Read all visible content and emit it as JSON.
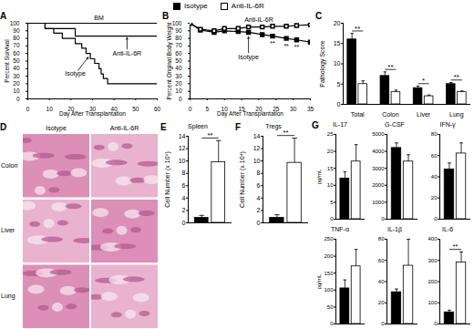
{
  "legend": {
    "series": [
      {
        "name": "Isotype",
        "color": "#000000"
      },
      {
        "name": "Anti-IL-6R",
        "color": "#ffffff"
      }
    ]
  },
  "chart_data": [
    {
      "panel": "A",
      "type": "line",
      "line_style": "step",
      "x_label": "Day After Transplantation",
      "y_label": "Percent Survival",
      "xlim": [
        0,
        60
      ],
      "xticks": [
        0,
        10,
        20,
        30,
        40,
        50,
        60
      ],
      "ylim": [
        0,
        100
      ],
      "yticks": [
        0,
        10,
        20,
        30,
        40,
        50,
        60,
        70,
        80,
        90,
        100
      ],
      "series": [
        {
          "name": "BM",
          "color": "#000000",
          "x": [
            0,
            60
          ],
          "values": [
            100,
            100
          ]
        },
        {
          "name": "Anti-IL-6R",
          "color": "#000000",
          "x": [
            0,
            8,
            22,
            60
          ],
          "values": [
            100,
            93,
            83,
            83
          ]
        },
        {
          "name": "Isotype",
          "color": "#000000",
          "x": [
            0,
            8,
            12,
            16,
            22,
            25,
            27,
            29,
            31,
            33,
            34,
            35,
            37,
            60
          ],
          "values": [
            100,
            93,
            87,
            80,
            73,
            67,
            60,
            53,
            47,
            40,
            33,
            27,
            20,
            20
          ]
        }
      ],
      "annotations": [
        {
          "text": "BM",
          "x": 33,
          "y": 107
        },
        {
          "text": "Anti-IL-6R",
          "x": 46,
          "y": 60,
          "arrow_to": [
            46,
            81
          ]
        },
        {
          "text": "Isotype",
          "x": 22,
          "y": 33,
          "arrow_to": [
            28,
            55
          ]
        }
      ]
    },
    {
      "panel": "B",
      "type": "line",
      "x_label": "Day After Transplantation",
      "y_label": "Percent Original Body Weight",
      "xlim": [
        0,
        35
      ],
      "xticks": [
        0,
        5,
        10,
        15,
        20,
        25,
        30,
        35
      ],
      "ylim": [
        0,
        100
      ],
      "yticks": [
        0,
        10,
        20,
        30,
        40,
        50,
        60,
        70,
        80,
        90,
        100
      ],
      "series": [
        {
          "name": "Isotype",
          "color": "#000000",
          "marker": "square",
          "x": [
            0,
            3,
            7,
            10,
            14,
            17,
            21,
            24,
            28,
            31,
            35
          ],
          "values": [
            100,
            91,
            88,
            90,
            89,
            88,
            85,
            83,
            80,
            78,
            75
          ]
        },
        {
          "name": "Anti-IL-6R",
          "color": "#ffffff",
          "marker": "square",
          "x": [
            0,
            3,
            7,
            10,
            14,
            17,
            21,
            24,
            28,
            31,
            35
          ],
          "values": [
            100,
            92,
            90,
            93,
            93,
            95,
            95,
            96,
            96,
            97,
            98
          ]
        }
      ],
      "annotations": [
        {
          "text": "**",
          "x": 24,
          "y": 73
        },
        {
          "text": "**",
          "x": 28,
          "y": 70
        },
        {
          "text": "**",
          "x": 31,
          "y": 68
        },
        {
          "text": "Anti-IL-6R",
          "x": 20,
          "y": 104
        },
        {
          "text": "Isotype",
          "x": 17,
          "y": 55,
          "arrow_to": [
            17,
            82
          ]
        }
      ]
    },
    {
      "panel": "C",
      "type": "bar",
      "y_label": "Pathology Score",
      "categories": [
        "Total",
        "Colon",
        "Liver",
        "Lung"
      ],
      "ylim": [
        0,
        20
      ],
      "yticks": [
        0,
        5,
        10,
        15,
        20
      ],
      "series": [
        {
          "name": "Isotype",
          "color": "#000000",
          "values": [
            16,
            7,
            4,
            5
          ],
          "errors": [
            1.5,
            1,
            0.5,
            0.4
          ]
        },
        {
          "name": "Anti-IL-6R",
          "color": "#ffffff",
          "values": [
            5,
            3,
            2,
            3
          ],
          "errors": [
            0.8,
            0.5,
            0.3,
            0.3
          ]
        }
      ],
      "significance": [
        "**",
        "**",
        "*",
        "**"
      ]
    },
    {
      "panel": "D",
      "type": "image_grid",
      "columns": [
        "Isotype",
        "Anti-IL-6R"
      ],
      "rows": [
        "Colon",
        "Liver",
        "Lung"
      ]
    },
    {
      "panel": "E",
      "type": "bar",
      "title": "Spleen",
      "y_label": "Cell Number (x 10⁶)",
      "categories": [
        null
      ],
      "tick_labels": "y",
      "ylim": [
        0,
        14
      ],
      "yticks": [
        0,
        2,
        4,
        6,
        8,
        10,
        12,
        14
      ],
      "series": [
        {
          "name": "Isotype",
          "color": "#000000",
          "values": [
            0.8
          ],
          "errors": [
            0.4
          ]
        },
        {
          "name": "Anti-IL-6R",
          "color": "#ffffff",
          "values": [
            9.8
          ],
          "errors": [
            3.5
          ]
        }
      ],
      "significance": [
        "**"
      ]
    },
    {
      "panel": "F",
      "type": "bar",
      "title": "Tregs",
      "y_label": "Cell Number (x 10⁴)",
      "categories": [
        null
      ],
      "tick_labels": "y",
      "ylim": [
        0,
        14
      ],
      "yticks": [
        0,
        2,
        4,
        6,
        8,
        10,
        12,
        14
      ],
      "series": [
        {
          "name": "Isotype",
          "color": "#000000",
          "values": [
            0.8
          ],
          "errors": [
            0.5
          ]
        },
        {
          "name": "Anti-IL-6R",
          "color": "#ffffff",
          "values": [
            9.7
          ],
          "errors": [
            4
          ]
        }
      ],
      "significance": [
        "**"
      ]
    },
    {
      "panel": "G",
      "type": "bar",
      "title": "IL-17",
      "y_label": "pg/mL",
      "categories": [
        null
      ],
      "tick_labels": "y",
      "ylim": [
        0,
        25
      ],
      "yticks": [
        0,
        5,
        10,
        15,
        20,
        25
      ],
      "series": [
        {
          "name": "Isotype",
          "color": "#000000",
          "values": [
            12
          ],
          "errors": [
            2
          ]
        },
        {
          "name": "Anti-IL-6R",
          "color": "#ffffff",
          "values": [
            17
          ],
          "errors": [
            5
          ]
        }
      ]
    },
    {
      "type": "bar",
      "title": "G-CSF",
      "categories": [
        null
      ],
      "tick_labels": "y",
      "ylim": [
        0,
        5000
      ],
      "yticks": [
        0,
        1000,
        2000,
        3000,
        4000,
        5000
      ],
      "series": [
        {
          "name": "Isotype",
          "color": "#000000",
          "values": [
            4200
          ],
          "errors": [
            300
          ]
        },
        {
          "name": "Anti-IL-6R",
          "color": "#ffffff",
          "values": [
            3400
          ],
          "errors": [
            400
          ]
        }
      ]
    },
    {
      "type": "bar",
      "title": "IFN-γ",
      "categories": [
        null
      ],
      "tick_labels": "y",
      "ylim": [
        0,
        80
      ],
      "yticks": [
        0,
        20,
        40,
        60,
        80
      ],
      "series": [
        {
          "name": "Isotype",
          "color": "#000000",
          "values": [
            47
          ],
          "errors": [
            6
          ]
        },
        {
          "name": "Anti-IL-6R",
          "color": "#ffffff",
          "values": [
            62
          ],
          "errors": [
            10
          ]
        }
      ]
    },
    {
      "type": "bar",
      "title": "TNF-α",
      "y_label": "pg/mL",
      "categories": [
        null
      ],
      "tick_labels": "y",
      "ylim": [
        0,
        250
      ],
      "yticks": [
        0,
        50,
        100,
        150,
        200,
        250
      ],
      "series": [
        {
          "name": "Isotype",
          "color": "#000000",
          "values": [
            105
          ],
          "errors": [
            25
          ]
        },
        {
          "name": "Anti-IL-6R",
          "color": "#ffffff",
          "values": [
            170
          ],
          "errors": [
            50
          ]
        }
      ]
    },
    {
      "type": "bar",
      "title": "IL-1β",
      "categories": [
        null
      ],
      "tick_labels": "y",
      "ylim": [
        0,
        80
      ],
      "yticks": [
        0,
        20,
        40,
        60,
        80
      ],
      "series": [
        {
          "name": "Isotype",
          "color": "#000000",
          "values": [
            30
          ],
          "errors": [
            3
          ]
        },
        {
          "name": "Anti-IL-6R",
          "color": "#ffffff",
          "values": [
            55
          ],
          "errors": [
            25
          ]
        }
      ]
    },
    {
      "type": "bar",
      "title": "IL-6",
      "categories": [
        null
      ],
      "tick_labels": "y",
      "ylim": [
        0,
        400
      ],
      "yticks": [
        0,
        100,
        200,
        300,
        400
      ],
      "series": [
        {
          "name": "Isotype",
          "color": "#000000",
          "values": [
            55
          ],
          "errors": [
            10
          ]
        },
        {
          "name": "Anti-IL-6R",
          "color": "#ffffff",
          "values": [
            290
          ],
          "errors": [
            50
          ]
        }
      ],
      "significance": [
        "**"
      ]
    }
  ]
}
